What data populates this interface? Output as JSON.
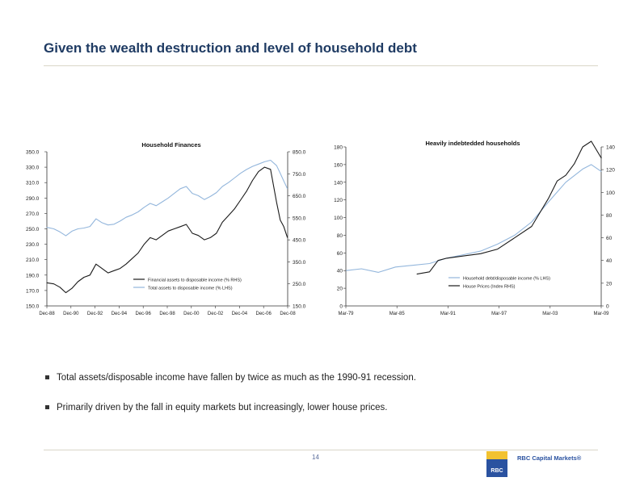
{
  "slide": {
    "title": "Given the wealth destruction and level of household debt",
    "bullets": [
      "Total assets/disposable income have fallen by twice as much as the 1990-91 recession.",
      "Primarily driven by the fall in equity markets but increasingly, lower house prices."
    ],
    "page_number": "14",
    "logo": {
      "text": "RBC Capital Markets®",
      "mark_label": "RBC"
    }
  },
  "chart_data": [
    {
      "type": "line",
      "title": "Household Finances",
      "x_ticks": [
        "Dec-88",
        "Dec-90",
        "Dec-92",
        "Dec-94",
        "Dec-96",
        "Dec-98",
        "Dec-00",
        "Dec-02",
        "Dec-04",
        "Dec-06",
        "Dec-08"
      ],
      "x_range": [
        1988.92,
        2008.92
      ],
      "left_axis": {
        "ticks": [
          "150.0",
          "170.0",
          "190.0",
          "210.0",
          "230.0",
          "250.0",
          "270.0",
          "290.0",
          "310.0",
          "330.0",
          "350.0"
        ],
        "range": [
          150,
          350
        ]
      },
      "right_axis": {
        "ticks": [
          "150.0",
          "250.0",
          "350.0",
          "450.0",
          "550.0",
          "650.0",
          "750.0",
          "850.0"
        ],
        "range": [
          150,
          850
        ]
      },
      "legend_position": "bottom-right",
      "series": [
        {
          "name": "Financial assets to disposable income (% RHS)",
          "axis": "right",
          "color": "#1a1a1a",
          "x": [
            1988.9,
            1989.5,
            1990.0,
            1990.5,
            1991.0,
            1991.5,
            1992.0,
            1992.5,
            1993.0,
            1993.5,
            1994.0,
            1994.5,
            1995.0,
            1995.5,
            1996.0,
            1996.5,
            1997.0,
            1997.5,
            1998.0,
            1998.5,
            1999.0,
            1999.5,
            2000.0,
            2000.5,
            2001.0,
            2001.5,
            2002.0,
            2002.5,
            2003.0,
            2003.5,
            2004.0,
            2004.5,
            2005.0,
            2005.5,
            2006.0,
            2006.5,
            2007.0,
            2007.5,
            2008.0,
            2008.3,
            2008.6,
            2008.9
          ],
          "y": [
            255,
            250,
            235,
            210,
            230,
            260,
            280,
            290,
            340,
            320,
            300,
            310,
            320,
            340,
            365,
            390,
            430,
            460,
            450,
            470,
            490,
            500,
            510,
            520,
            480,
            470,
            450,
            460,
            480,
            530,
            560,
            590,
            630,
            670,
            720,
            760,
            780,
            770,
            620,
            540,
            510,
            460
          ]
        },
        {
          "name": "Total assets to disposable income (% LHS)",
          "axis": "left",
          "color": "#93b6dc",
          "x": [
            1988.9,
            1989.5,
            1990.0,
            1990.5,
            1991.0,
            1991.5,
            1992.0,
            1992.5,
            1993.0,
            1993.5,
            1994.0,
            1994.5,
            1995.0,
            1995.5,
            1996.0,
            1996.5,
            1997.0,
            1997.5,
            1998.0,
            1998.5,
            1999.0,
            1999.5,
            2000.0,
            2000.5,
            2001.0,
            2001.5,
            2002.0,
            2002.5,
            2003.0,
            2003.5,
            2004.0,
            2004.5,
            2005.0,
            2005.5,
            2006.0,
            2006.5,
            2007.0,
            2007.5,
            2008.0,
            2008.3,
            2008.6,
            2008.9
          ],
          "y": [
            252,
            250,
            246,
            241,
            247,
            250,
            251,
            253,
            263,
            258,
            255,
            256,
            260,
            265,
            268,
            272,
            278,
            283,
            280,
            285,
            290,
            296,
            302,
            305,
            296,
            293,
            288,
            292,
            297,
            305,
            310,
            316,
            322,
            327,
            331,
            334,
            337,
            339,
            332,
            322,
            312,
            302
          ]
        }
      ]
    },
    {
      "type": "line",
      "title": "Heavily indebtedded households",
      "x_ticks": [
        "Mar-79",
        "Mar-85",
        "Mar-91",
        "Mar-97",
        "Mar-03",
        "Mar-09"
      ],
      "x_range": [
        1979.17,
        2009.17
      ],
      "left_axis": {
        "ticks": [
          "0",
          "20",
          "40",
          "60",
          "80",
          "100",
          "120",
          "140",
          "160",
          "180"
        ],
        "range": [
          0,
          180
        ]
      },
      "right_axis": {
        "ticks": [
          "0",
          "20",
          "40",
          "60",
          "80",
          "100",
          "120",
          "140"
        ],
        "range": [
          0,
          140
        ]
      },
      "legend_position": "bottom-right",
      "series": [
        {
          "name": "Household debt/disposable income (% LHS)",
          "axis": "left",
          "color": "#93b6dc",
          "x": [
            1979.2,
            1981,
            1983,
            1985,
            1987,
            1989,
            1991,
            1993,
            1995,
            1997,
            1999,
            2001,
            2003,
            2005,
            2007,
            2008,
            2009.2
          ],
          "y": [
            40,
            42,
            38,
            44,
            46,
            48,
            54,
            58,
            62,
            70,
            80,
            95,
            118,
            140,
            155,
            160,
            152
          ]
        },
        {
          "name": "House Prices (Index RHS)",
          "axis": "right",
          "color": "#1a1a1a",
          "x": [
            1987.5,
            1989,
            1990,
            1991,
            1993,
            1995,
            1997,
            1999,
            2001,
            2003,
            2004,
            2005,
            2006,
            2007,
            2008,
            2009.2
          ],
          "y": [
            28,
            30,
            40,
            42,
            44,
            46,
            50,
            60,
            70,
            95,
            110,
            115,
            125,
            140,
            145,
            130
          ]
        }
      ]
    }
  ]
}
